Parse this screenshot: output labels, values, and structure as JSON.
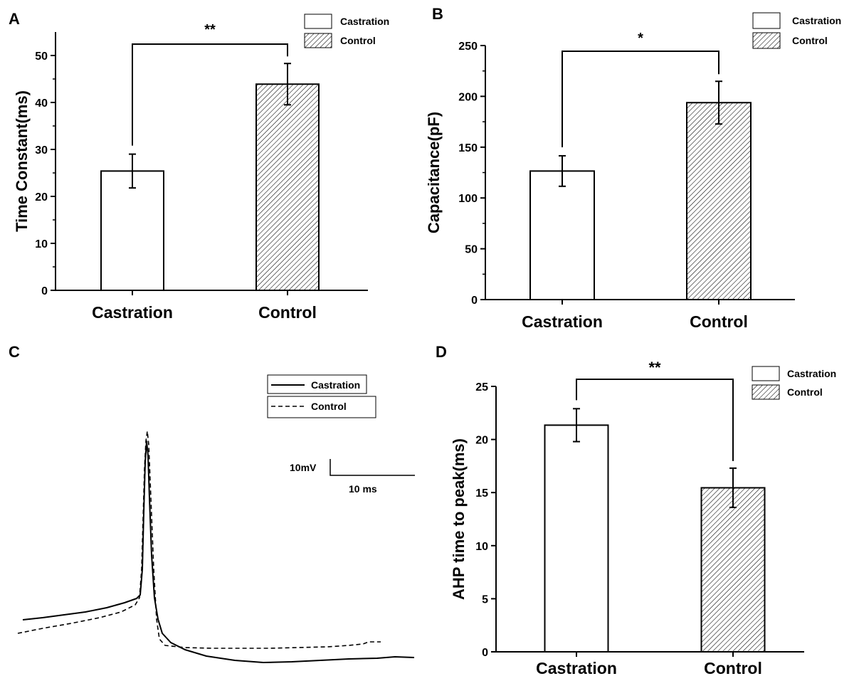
{
  "panels": {
    "A": {
      "letter": "A"
    },
    "B": {
      "letter": "B"
    },
    "C": {
      "letter": "C"
    },
    "D": {
      "letter": "D"
    }
  },
  "chart_data": [
    {
      "panel": "A",
      "type": "bar",
      "categories": [
        "Castration",
        "Control"
      ],
      "values": [
        25.4,
        43.9
      ],
      "errors": [
        3.6,
        4.4
      ],
      "ylabel": "Time Constant(ms)",
      "ylim": [
        0,
        55
      ],
      "yticks": [
        0,
        10,
        20,
        30,
        40,
        50
      ],
      "legend": [
        "Castration",
        "Control"
      ],
      "significance": "**",
      "grid": false
    },
    {
      "panel": "B",
      "type": "bar",
      "categories": [
        "Castration",
        "Control"
      ],
      "values": [
        126.5,
        193.8
      ],
      "errors": [
        15,
        21
      ],
      "ylabel": "Capacitance(pF)",
      "ylim": [
        0,
        250
      ],
      "yticks": [
        0,
        50,
        100,
        150,
        200,
        250
      ],
      "legend": [
        "Castration",
        "Control"
      ],
      "significance": "*",
      "grid": false
    },
    {
      "panel": "C",
      "type": "line",
      "series": [
        {
          "name": "Castration",
          "style": "solid"
        },
        {
          "name": "Control",
          "style": "dashed"
        }
      ],
      "scalebar": {
        "voltage": "10mV",
        "time": "10 ms"
      }
    },
    {
      "panel": "D",
      "type": "bar",
      "categories": [
        "Castration",
        "Control"
      ],
      "values": [
        21.35,
        15.45
      ],
      "errors": [
        1.55,
        1.85
      ],
      "ylabel": "AHP time to peak(ms)",
      "ylim": [
        0,
        25
      ],
      "yticks": [
        0,
        5,
        10,
        15,
        20,
        25
      ],
      "legend": [
        "Castration",
        "Control"
      ],
      "significance": "**",
      "grid": false
    }
  ]
}
